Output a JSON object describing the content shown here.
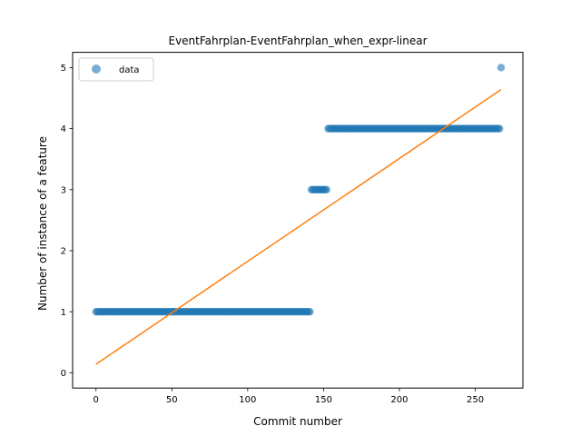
{
  "chart_data": {
    "type": "scatter",
    "title": "EventFahrplan-EventFahrplan_when_expr-linear",
    "xlabel": "Commit number",
    "ylabel": "Number of instance of a feature",
    "xlim": [
      -15.4,
      281.4
    ],
    "ylim": [
      -0.25,
      5.25
    ],
    "xticks": [
      0,
      50,
      100,
      150,
      200,
      250
    ],
    "yticks": [
      0,
      1,
      2,
      3,
      4,
      5
    ],
    "grid": false,
    "legend": {
      "placement": "top-left",
      "entries": [
        "data"
      ]
    },
    "series": [
      {
        "name": "data",
        "kind": "scatter",
        "color": "#1f77b4",
        "segments": [
          {
            "x_start": 0,
            "x_end": 141,
            "y": 1
          },
          {
            "x_start": 142,
            "x_end": 152,
            "y": 3
          },
          {
            "x_start": 153,
            "x_end": 266,
            "y": 4
          },
          {
            "x_start": 267,
            "x_end": 267,
            "y": 5
          }
        ]
      },
      {
        "kind": "line",
        "color": "#ff7f0e",
        "x": [
          0,
          267
        ],
        "y": [
          0.14,
          4.64
        ]
      }
    ]
  }
}
